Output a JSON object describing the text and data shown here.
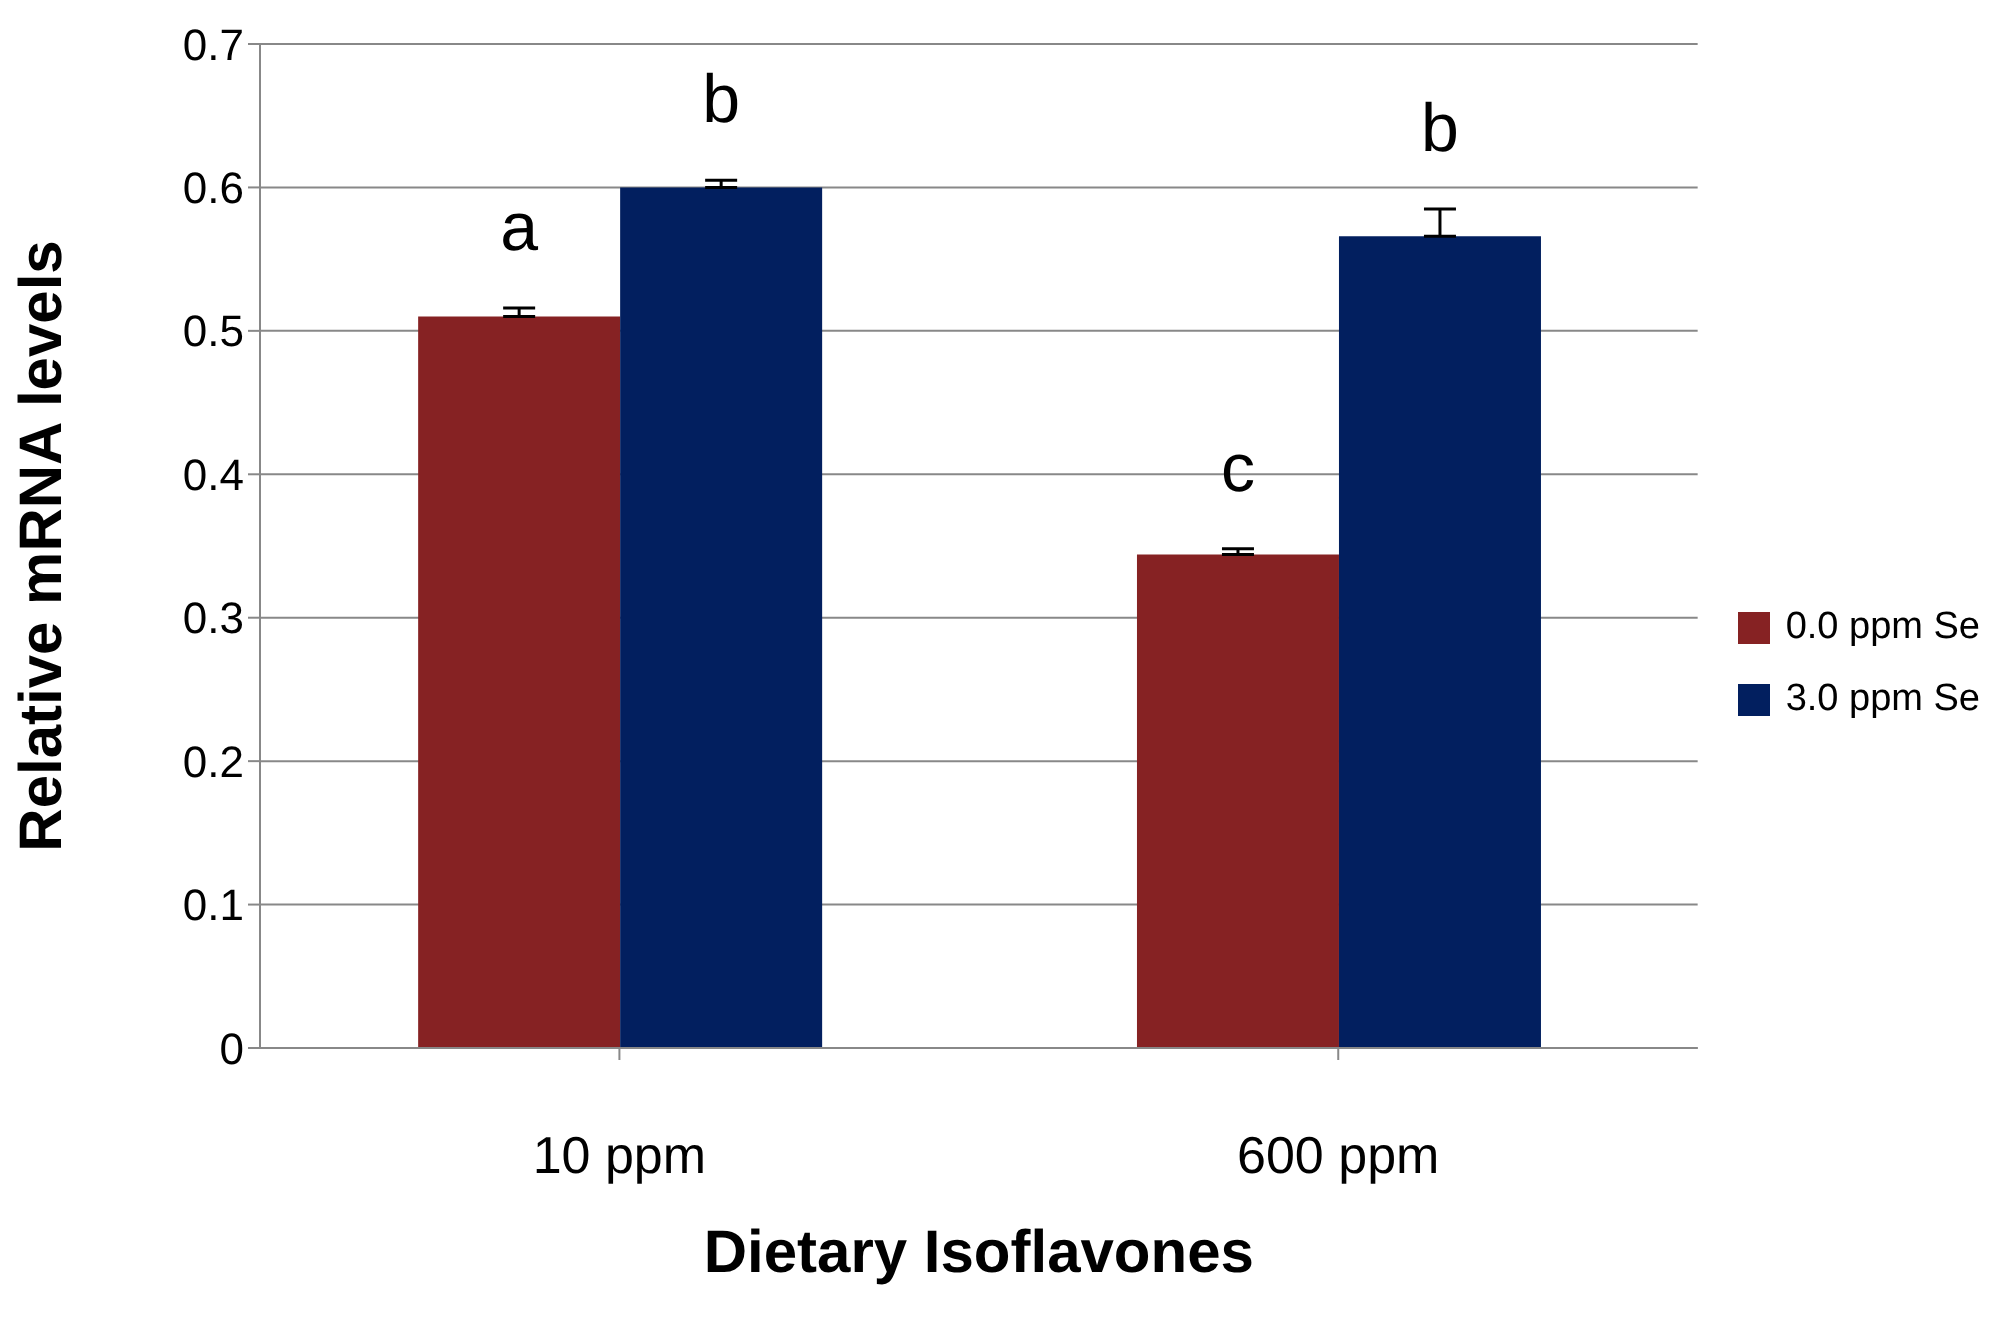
{
  "chart_data": {
    "type": "bar",
    "xlabel": "Dietary Isoflavones",
    "ylabel": "Relative mRNA levels",
    "categories": [
      "10 ppm",
      "600 ppm"
    ],
    "series": [
      {
        "name": "0.0 ppm Se",
        "color": "#862223",
        "values": [
          0.51,
          0.344
        ],
        "errors": [
          [
            0.51,
            0.516
          ],
          [
            0.344,
            0.348
          ]
        ]
      },
      {
        "name": "3.0 ppm Se",
        "color": "#021f5f",
        "values": [
          0.6,
          0.566
        ],
        "errors": [
          [
            0.6,
            0.605
          ],
          [
            0.566,
            0.585
          ]
        ]
      }
    ],
    "ylim": [
      0,
      0.7
    ],
    "yticks": [
      0,
      0.1,
      0.2,
      0.3,
      0.4,
      0.5,
      0.6,
      0.7
    ],
    "grid": "y",
    "legend": "right",
    "annotations": [
      {
        "text": "a",
        "x": "10 ppm",
        "y": 0.51
      },
      {
        "text": "b",
        "x": "10 ppm",
        "y": 0.6
      },
      {
        "text": "c",
        "x": "600 ppm",
        "y": 0.344
      },
      {
        "text": "b",
        "x": "600 ppm",
        "y": 0.566
      }
    ]
  }
}
